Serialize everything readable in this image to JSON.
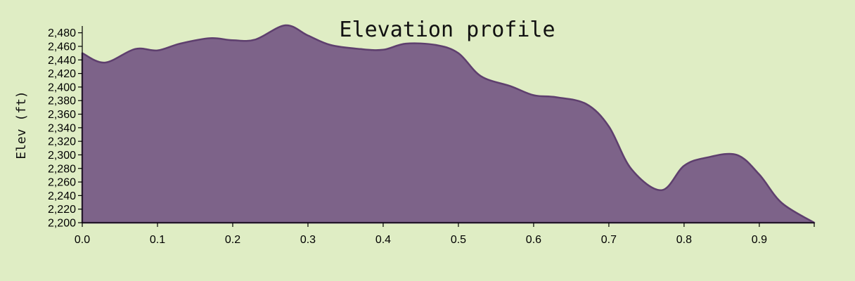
{
  "chart_data": {
    "type": "area",
    "title": "Elevation profile",
    "xlabel": "",
    "ylabel": "Elev (ft)",
    "xlim": [
      0,
      0.973
    ],
    "ylim": [
      2200,
      2490
    ],
    "x_ticks": [
      "0.0",
      "0.1",
      "0.2",
      "0.3",
      "0.4",
      "0.5",
      "0.6",
      "0.7",
      "0.8",
      "0.9"
    ],
    "y_ticks": [
      "2,200",
      "2,220",
      "2,240",
      "2,260",
      "2,280",
      "2,300",
      "2,320",
      "2,340",
      "2,360",
      "2,380",
      "2,400",
      "2,420",
      "2,440",
      "2,460",
      "2,480"
    ],
    "grid": false,
    "legend": "none",
    "colors": {
      "fill": "#7d6389",
      "stroke": "#5e3f6e",
      "background": "#dfedc4"
    },
    "x": [
      0.0,
      0.03,
      0.07,
      0.1,
      0.13,
      0.17,
      0.2,
      0.23,
      0.27,
      0.3,
      0.33,
      0.37,
      0.4,
      0.43,
      0.47,
      0.5,
      0.53,
      0.57,
      0.6,
      0.63,
      0.67,
      0.7,
      0.73,
      0.77,
      0.8,
      0.83,
      0.87,
      0.9,
      0.93,
      0.973
    ],
    "y": [
      2450,
      2436,
      2456,
      2454,
      2464,
      2472,
      2469,
      2470,
      2491,
      2476,
      2462,
      2456,
      2455,
      2464,
      2462,
      2450,
      2416,
      2401,
      2388,
      2385,
      2375,
      2342,
      2279,
      2248,
      2284,
      2296,
      2300,
      2271,
      2229,
      2200
    ]
  }
}
